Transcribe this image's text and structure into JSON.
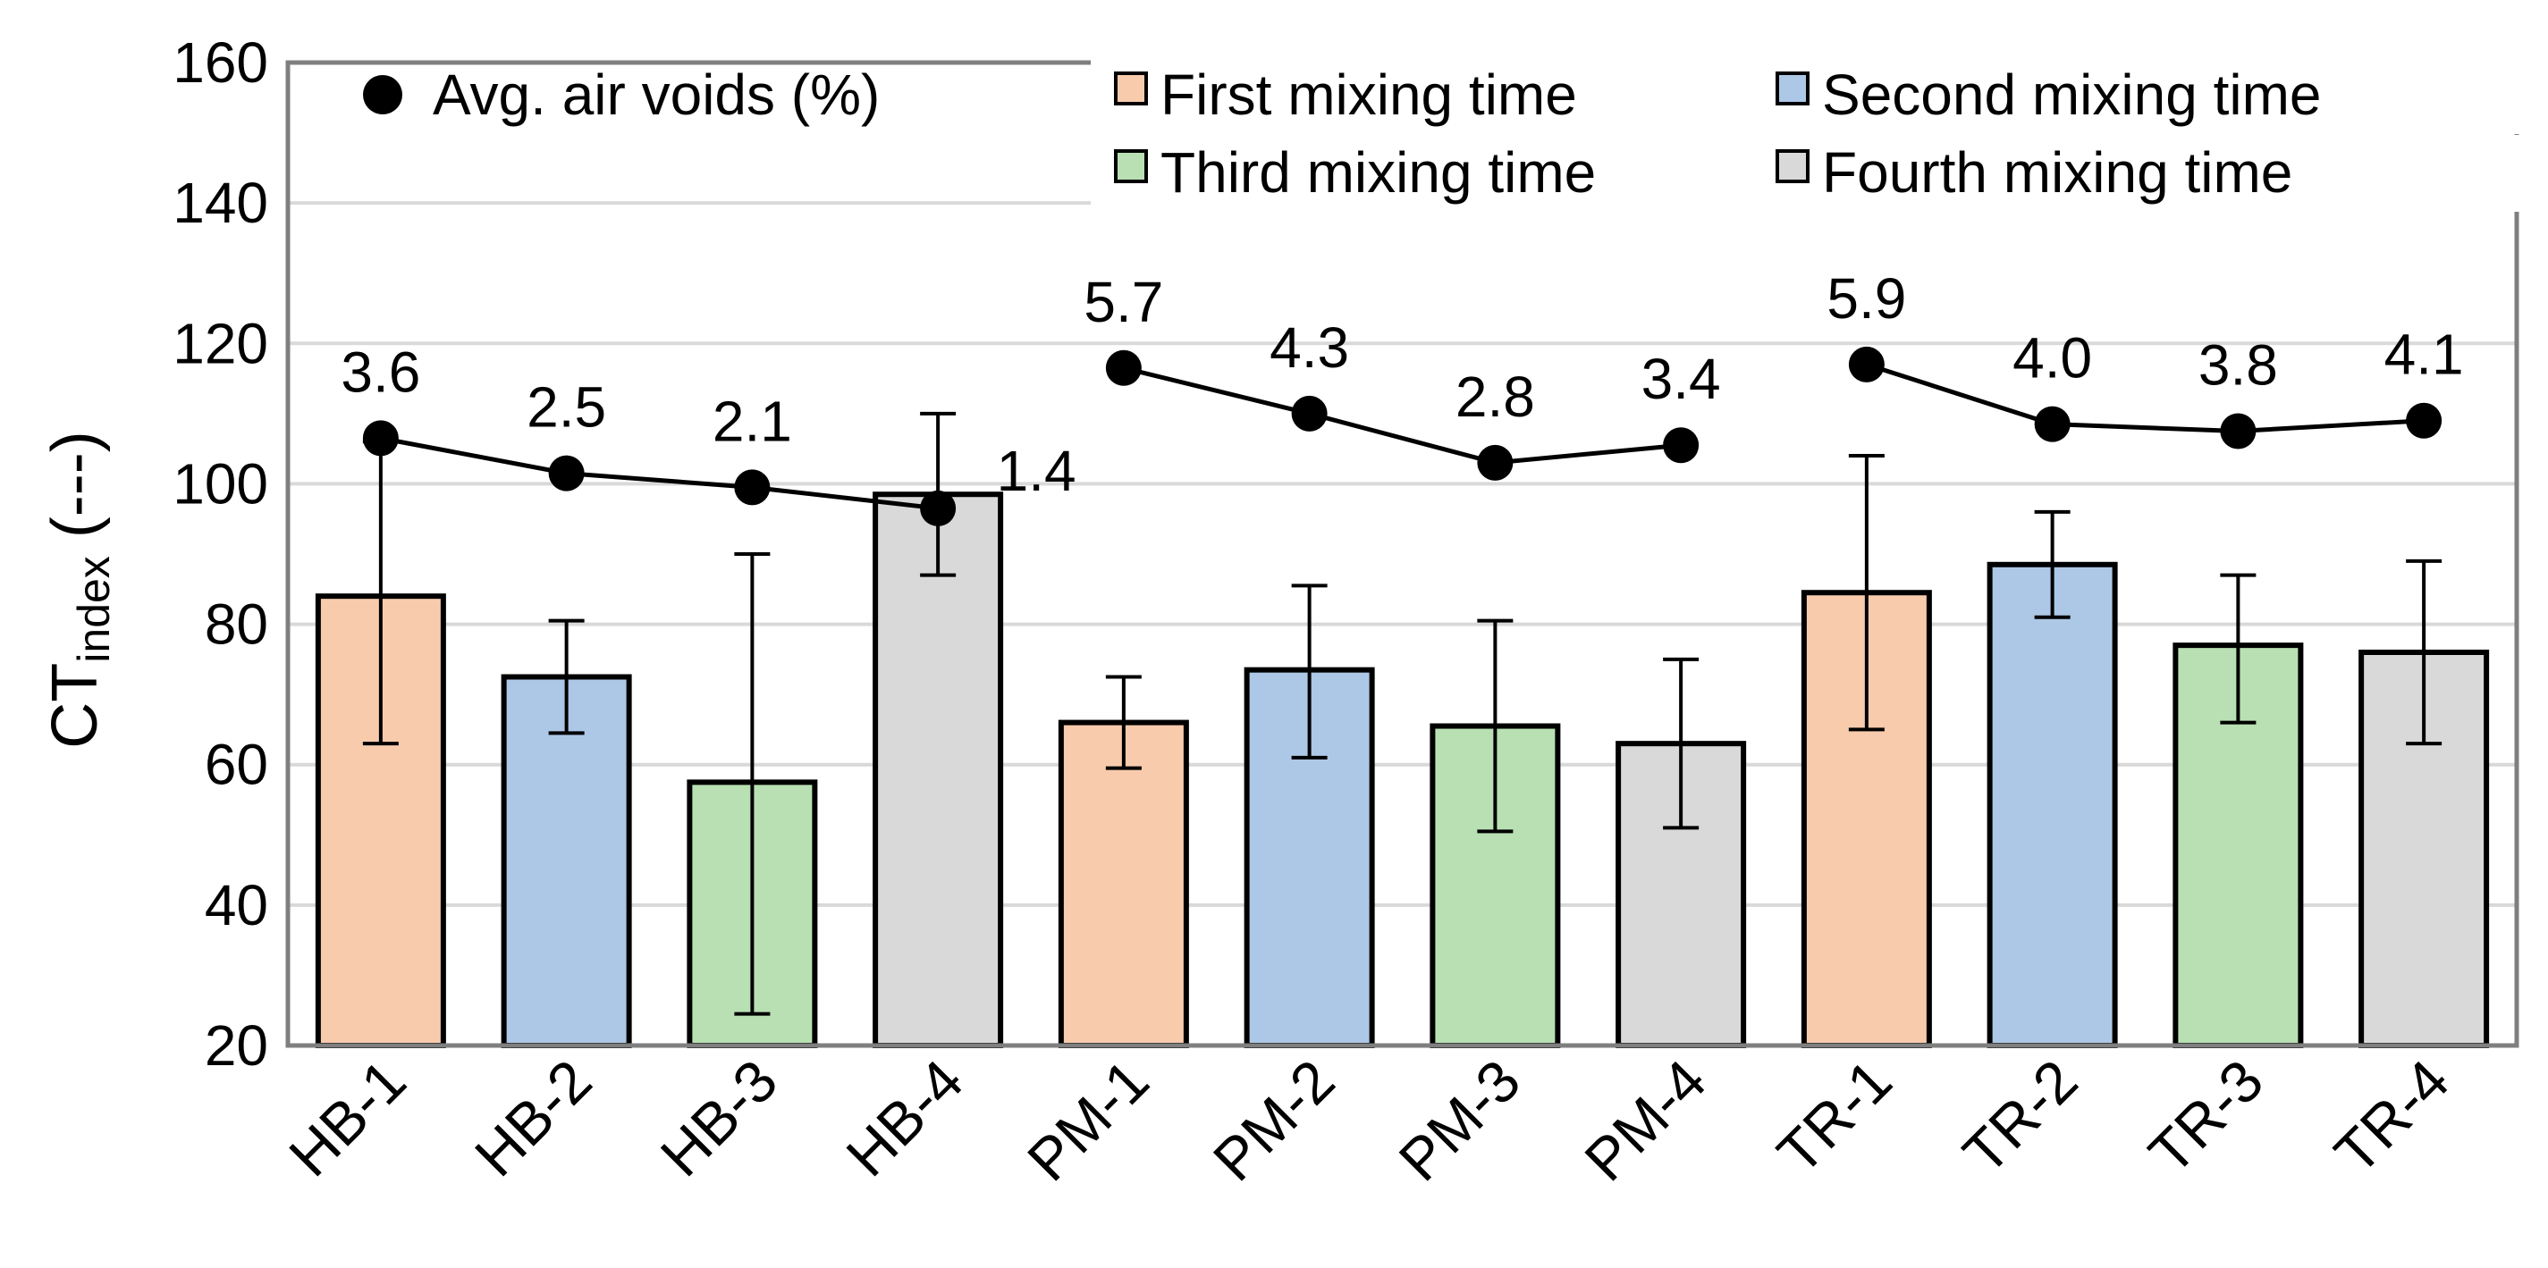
{
  "chart_data": {
    "type": "bar",
    "ylabel_main": "CT",
    "ylabel_sub": "index",
    "ylabel_suffix": " (---)",
    "ylim": [
      20,
      160
    ],
    "yticks": [
      20,
      40,
      60,
      80,
      100,
      120,
      140,
      160
    ],
    "grid": true,
    "categories": [
      "HB-1",
      "HB-2",
      "HB-3",
      "HB-4",
      "PM-1",
      "PM-2",
      "PM-3",
      "PM-4",
      "TR-1",
      "TR-2",
      "TR-3",
      "TR-4"
    ],
    "values": [
      84,
      72.5,
      57.5,
      98.5,
      66,
      73.5,
      65.5,
      63,
      84.5,
      88.5,
      77,
      76
    ],
    "errors": [
      [
        63,
        106
      ],
      [
        64.5,
        80.5
      ],
      [
        24.5,
        90
      ],
      [
        87,
        110
      ],
      [
        59.5,
        72.5
      ],
      [
        61,
        85.5
      ],
      [
        50.5,
        80.5
      ],
      [
        51,
        75
      ],
      [
        65,
        104
      ],
      [
        81,
        96
      ],
      [
        66,
        87
      ],
      [
        63,
        89
      ]
    ],
    "mixing_group": [
      0,
      1,
      2,
      3,
      0,
      1,
      2,
      3,
      0,
      1,
      2,
      3
    ],
    "series_colors": [
      "#f8cbad",
      "#adc8e6",
      "#b8e0b3",
      "#d9d9d9"
    ],
    "line_series": {
      "name": "Avg. air voids (%)",
      "y_positions": [
        106.5,
        101.5,
        99.5,
        96.5,
        116.5,
        110,
        103,
        105.5,
        117,
        108.5,
        107.5,
        109
      ],
      "labels": [
        "3.6",
        "2.5",
        "2.1",
        "1.4",
        "5.7",
        "4.3",
        "2.8",
        "3.4",
        "5.9",
        "4.0",
        "3.8",
        "4.1"
      ],
      "label_dx_side": [
        0,
        0,
        0,
        1,
        0,
        0,
        0,
        0,
        0,
        0,
        0,
        0
      ]
    },
    "legend": {
      "placement": "top",
      "entries": [
        {
          "label": "Avg. air voids (%)",
          "kind": "marker"
        },
        {
          "label": "First mixing time",
          "kind": "box",
          "group": 0
        },
        {
          "label": "Second mixing time",
          "kind": "box",
          "group": 1
        },
        {
          "label": "Third mixing time",
          "kind": "box",
          "group": 2
        },
        {
          "label": "Fourth mixing time",
          "kind": "box",
          "group": 3
        }
      ]
    }
  }
}
